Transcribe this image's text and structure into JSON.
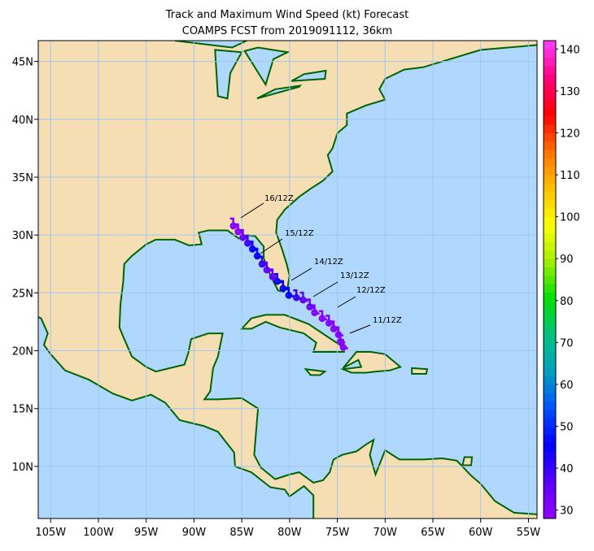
{
  "title": "Track and Maximum Wind Speed (kt) Forecast",
  "subtitle": "COAMPS FCST from 2019091112, 36km",
  "map": {
    "xlim": [
      -106.3,
      -54.1
    ],
    "ylim": [
      5.5,
      46.8
    ],
    "xticks": [
      {
        "value": -105,
        "label": "105W"
      },
      {
        "value": -100,
        "label": "100W"
      },
      {
        "value": -95,
        "label": "95W"
      },
      {
        "value": -90,
        "label": "90W"
      },
      {
        "value": -85,
        "label": "85W"
      },
      {
        "value": -80,
        "label": "80W"
      },
      {
        "value": -75,
        "label": "75W"
      },
      {
        "value": -70,
        "label": "70W"
      },
      {
        "value": -65,
        "label": "65W"
      },
      {
        "value": -60,
        "label": "60W"
      },
      {
        "value": -55,
        "label": "55W"
      }
    ],
    "yticks": [
      {
        "value": 10,
        "label": "10N"
      },
      {
        "value": 15,
        "label": "15N"
      },
      {
        "value": 20,
        "label": "20N"
      },
      {
        "value": 25,
        "label": "25N"
      },
      {
        "value": 30,
        "label": "30N"
      },
      {
        "value": 35,
        "label": "35N"
      },
      {
        "value": 40,
        "label": "40N"
      },
      {
        "value": 45,
        "label": "45N"
      }
    ],
    "grid": true
  },
  "colorbar": {
    "range": [
      28,
      142
    ],
    "ticks": [
      30,
      40,
      50,
      60,
      70,
      80,
      90,
      100,
      110,
      120,
      130,
      140
    ],
    "colors": [
      "#9400ff",
      "#5a00ff",
      "#0000ff",
      "#0050ff",
      "#00a0c0",
      "#00c080",
      "#00e000",
      "#a0f000",
      "#ffff00",
      "#ffc000",
      "#ff7000",
      "#ff0000",
      "#ff0080",
      "#ff40ff"
    ]
  },
  "track": {
    "lon": [
      -74.3,
      -74.6,
      -74.8,
      -75.3,
      -75.8,
      -76.5,
      -77.3,
      -77.8,
      -78.5,
      -79.2,
      -80.0,
      -80.6,
      -81.2,
      -81.7,
      -82.3,
      -82.8,
      -83.3,
      -83.8,
      -84.3,
      -84.8,
      -85.3,
      -85.8
    ],
    "lat": [
      20.5,
      21.0,
      21.6,
      22.1,
      22.6,
      23.0,
      23.5,
      24.0,
      24.6,
      24.8,
      25.0,
      25.6,
      26.2,
      26.6,
      27.2,
      27.7,
      28.4,
      29.0,
      29.5,
      30.0,
      30.5,
      31.0
    ],
    "wind": [
      30,
      30,
      30,
      30,
      30,
      30,
      30,
      35,
      35,
      40,
      45,
      45,
      45,
      35,
      35,
      40,
      45,
      45,
      40,
      35,
      30,
      30
    ]
  },
  "annotations": [
    "11/12Z",
    "12/12Z",
    "13/12Z",
    "14/12Z",
    "15/12Z",
    "16/12Z"
  ]
}
